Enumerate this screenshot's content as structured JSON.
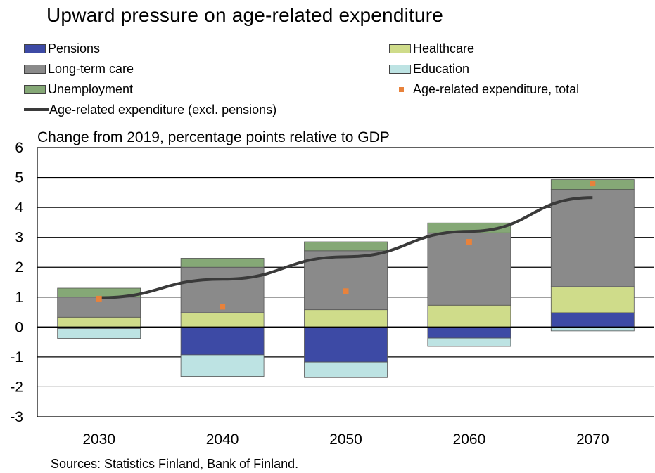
{
  "title": "Upward pressure on age-related expenditure",
  "subtitle": "Change from 2019, percentage points relative to GDP",
  "source": "Sources: Statistics Finland, Bank of Finland.",
  "legend": [
    {
      "label": "Pensions",
      "color": "#3d4aa5",
      "kind": "box"
    },
    {
      "label": "Healthcare",
      "color": "#cfdc8a",
      "kind": "box"
    },
    {
      "label": "Long-term care",
      "color": "#8a8a8a",
      "kind": "box"
    },
    {
      "label": "Education",
      "color": "#bde3e3",
      "kind": "box"
    },
    {
      "label": "Unemployment",
      "color": "#85a876",
      "kind": "box"
    },
    {
      "label": "Age-related expenditure, total",
      "color": "#e8823b",
      "kind": "dot"
    },
    {
      "label": "Age-related expenditure (excl. pensions)",
      "color": "#3a3a3a",
      "kind": "line"
    }
  ],
  "chart_data": {
    "type": "bar",
    "stacked": true,
    "categories": [
      "2030",
      "2040",
      "2050",
      "2060",
      "2070"
    ],
    "ylim": [
      -3,
      6
    ],
    "yticks": [
      -3,
      -2,
      -1,
      0,
      1,
      2,
      3,
      4,
      5,
      6
    ],
    "grid": true,
    "series": [
      {
        "name": "Pensions",
        "color": "#3d4aa5",
        "values": [
          -0.05,
          -0.93,
          -1.17,
          -0.37,
          0.48
        ]
      },
      {
        "name": "Healthcare",
        "color": "#cfdc8a",
        "values": [
          0.33,
          0.48,
          0.58,
          0.73,
          0.87
        ]
      },
      {
        "name": "Long-term care",
        "color": "#8a8a8a",
        "values": [
          0.67,
          1.52,
          1.97,
          2.42,
          3.25
        ]
      },
      {
        "name": "Education",
        "color": "#bde3e3",
        "values": [
          -0.33,
          -0.72,
          -0.52,
          -0.28,
          -0.13
        ]
      },
      {
        "name": "Unemployment",
        "color": "#85a876",
        "values": [
          0.3,
          0.3,
          0.3,
          0.33,
          0.33
        ]
      }
    ],
    "total": {
      "name": "Age-related expenditure, total",
      "color": "#e8823b",
      "values": [
        0.95,
        0.68,
        1.2,
        2.85,
        4.8
      ]
    },
    "line": {
      "name": "Age-related expenditure (excl. pensions)",
      "color": "#3a3a3a",
      "values": [
        0.98,
        1.6,
        2.35,
        3.2,
        4.33
      ]
    }
  }
}
